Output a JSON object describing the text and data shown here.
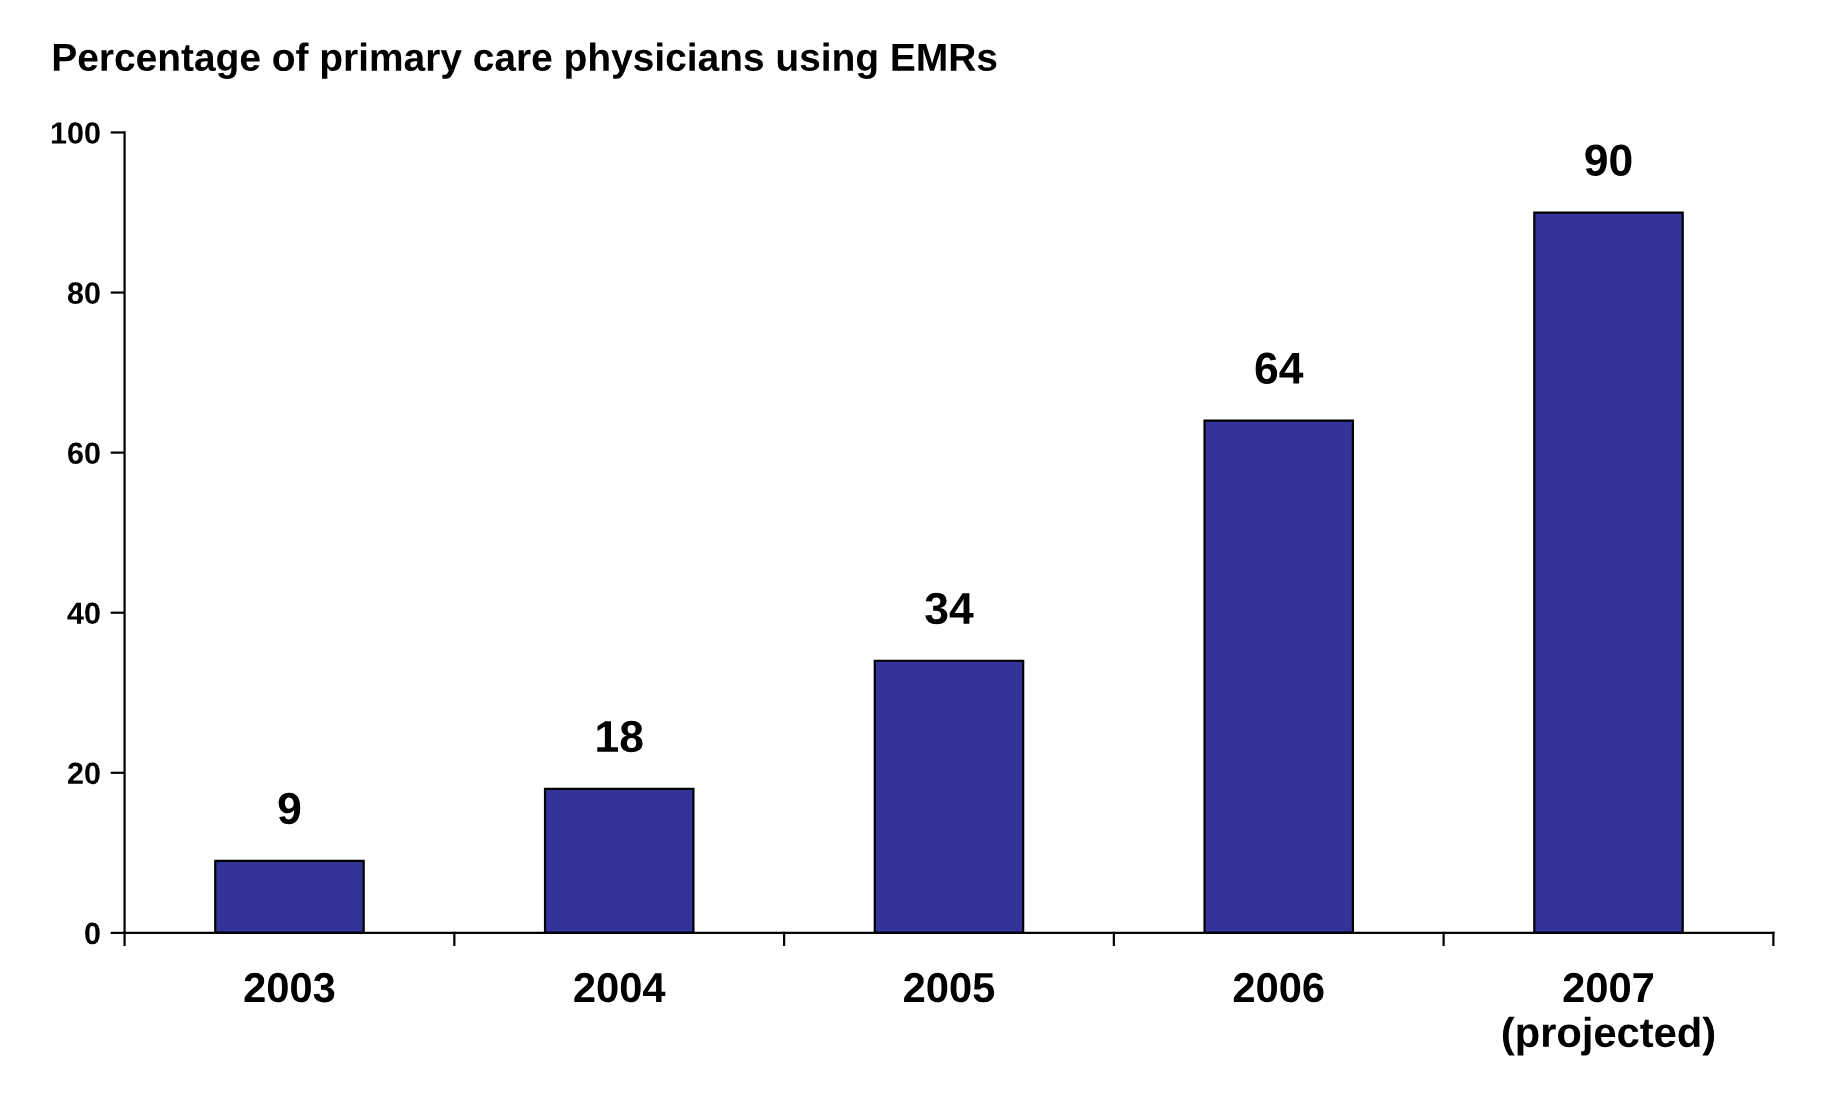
{
  "chart_data": {
    "type": "bar",
    "title": "Percentage of primary care physicians using EMRs",
    "categories": [
      "2003",
      "2004",
      "2005",
      "2006",
      "2007\n(projected)"
    ],
    "values": [
      9,
      18,
      34,
      64,
      90
    ],
    "color": "#333399",
    "ylim": [
      0,
      100
    ],
    "yticks": [
      0,
      20,
      40,
      60,
      80,
      100
    ],
    "grid": false,
    "data_labels": true
  }
}
